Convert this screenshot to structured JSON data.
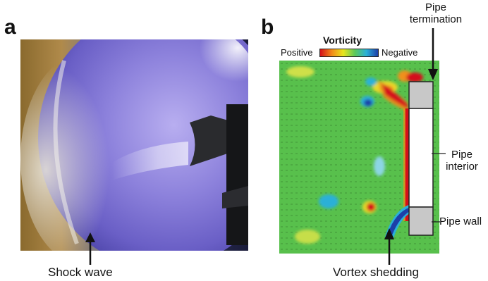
{
  "panel_a": {
    "label": "a",
    "annotation": "Shock wave"
  },
  "panel_b": {
    "label": "b",
    "legend": {
      "title": "Vorticity",
      "low_label": "Positive",
      "high_label": "Negative",
      "colormap": [
        "#d4101a",
        "#f28a1a",
        "#e8e61e",
        "#5cc85a",
        "#2ab0d8",
        "#1c3fa8"
      ]
    },
    "callouts": {
      "pipe_termination": "Pipe\ntermination",
      "pipe_interior": "Pipe\ninterior",
      "pipe_wall": "Pipe wall",
      "vortex_shedding": "Vortex shedding"
    }
  }
}
